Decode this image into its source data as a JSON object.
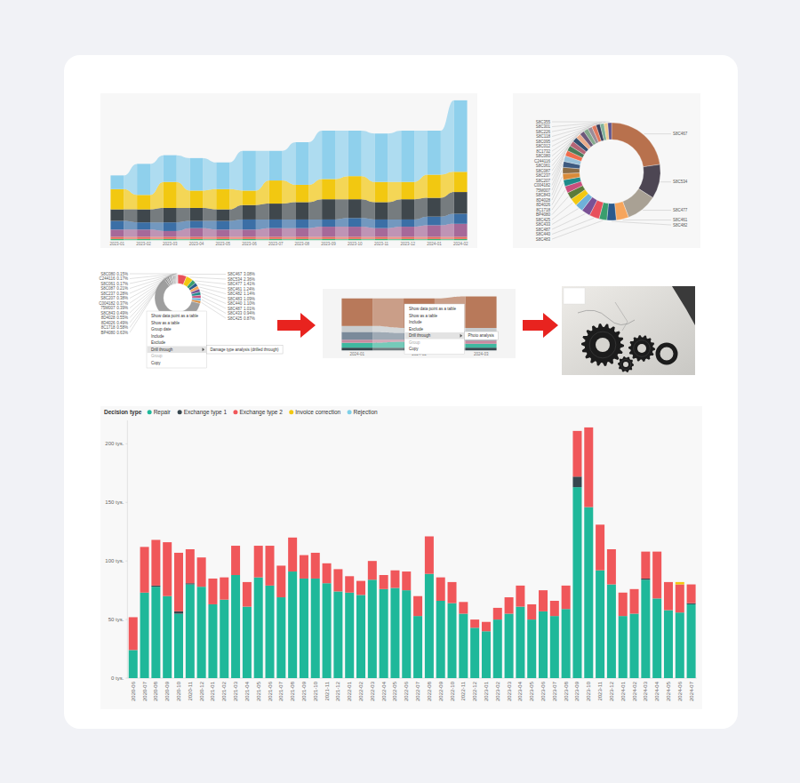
{
  "chart_data": [
    {
      "type": "ribbon",
      "tick_labels": "x",
      "ylim": [
        0,
        100
      ],
      "categories": [
        "2023-01",
        "2023-02",
        "2023-03",
        "2023-04",
        "2023-05",
        "2023-06",
        "2023-07",
        "2023-08",
        "2023-09",
        "2023-10",
        "2023-11",
        "2023-12",
        "2024-01",
        "2024-02"
      ],
      "series": [
        {
          "color": "#3bb273",
          "values": [
            1,
            1,
            1,
            1,
            1,
            1,
            1,
            1,
            1,
            1,
            1,
            1,
            1,
            1
          ]
        },
        {
          "color": "#e8705f",
          "values": [
            1.5,
            1.5,
            1.5,
            1.5,
            1.5,
            1.5,
            1.5,
            1.5,
            1.5,
            1.5,
            1.5,
            1.5,
            1.5,
            1.5
          ]
        },
        {
          "color": "#a66999",
          "values": [
            5,
            5,
            4,
            6,
            5,
            5,
            6,
            6,
            7,
            7,
            6,
            7,
            8,
            9
          ]
        },
        {
          "color": "#3b6fa6",
          "values": [
            6,
            5,
            6,
            5,
            6,
            7,
            6,
            6,
            5,
            6,
            6,
            5,
            6,
            7
          ]
        },
        {
          "color": "#3f474c",
          "values": [
            8,
            9,
            10,
            9,
            8,
            10,
            11,
            12,
            14,
            13,
            12,
            14,
            13,
            15
          ]
        },
        {
          "color": "#f2c811",
          "values": [
            14,
            10,
            18,
            12,
            14,
            10,
            16,
            12,
            14,
            16,
            14,
            12,
            16,
            14
          ]
        },
        {
          "color": "#8fd0ec",
          "values": [
            9.5,
            21.5,
            18.5,
            22.5,
            18.5,
            27.5,
            20.5,
            29.5,
            33.5,
            31.5,
            33.5,
            35.5,
            30.5,
            49.5
          ]
        }
      ]
    },
    {
      "type": "donut",
      "categories": [
        "S8C467",
        "S8C534",
        "S8C477",
        "S8C461",
        "S8C482",
        "S8C483",
        "S8C440",
        "S8C487",
        "S8C433",
        "S8C425",
        "BP4080",
        "8C1718",
        "8D4026",
        "8D4028",
        "S8C843",
        "75M007",
        "C004182",
        "S8C207",
        "S8C237",
        "S8C087",
        "S8C061",
        "C244116",
        "S8C080",
        "8C1732",
        "S8C012",
        "S8C095",
        "S8C118",
        "S8C226",
        "S8C301",
        "S8C355"
      ],
      "values": [
        22,
        11,
        10,
        4,
        3,
        2.5,
        3.2,
        2.8,
        2.6,
        2.4,
        2.3,
        2.2,
        2.1,
        2.0,
        2.0,
        1.9,
        1.8,
        1.8,
        1.7,
        1.7,
        1.6,
        1.6,
        1.5,
        1.5,
        1.4,
        1.4,
        1.3,
        1.3,
        1.2,
        1.2
      ],
      "colors": [
        "#b8714d",
        "#4d4653",
        "#a9a194",
        "#f6a55c",
        "#2b5a8c",
        "#3a9e6e",
        "#e8505b",
        "#7a5195",
        "#6fb1d9",
        "#f2c811",
        "#5b7a3a",
        "#c94f7c",
        "#1f8a8a",
        "#d98b3a",
        "#8c6d46",
        "#3d5a80",
        "#98c1d9",
        "#ee6c4d",
        "#4a7c59",
        "#b56576",
        "#355070",
        "#eaac8b",
        "#6d597a",
        "#84a98c",
        "#9a8c98",
        "#e07a5f",
        "#3d405b",
        "#81b29a",
        "#f2cc8f",
        "#5e548e"
      ]
    },
    {
      "type": "donut",
      "data_labels": true,
      "categories": [
        "S8C467",
        "S8C534",
        "S8C477",
        "S8C461",
        "S8C482",
        "S8C483",
        "S8C440",
        "S8C487",
        "S8C433",
        "S8C425",
        null,
        "BP4080",
        "8C1718",
        "8D4026",
        "8D4028",
        "S8C843",
        "75M007",
        "C004182",
        "S8C207",
        "S8C237",
        "S8C087",
        "S8C061",
        "C244116",
        "S8C080"
      ],
      "values": [
        3.08,
        2.36,
        1.41,
        1.24,
        1.14,
        1.09,
        1.1,
        1.01,
        0.94,
        0.87,
        30,
        0.63,
        0.58,
        0.49,
        0.55,
        0.49,
        0.39,
        0.37,
        0.38,
        0.28,
        0.21,
        0.17,
        0.17,
        0.15
      ],
      "value_labels": [
        "3.08%",
        "2.36%",
        "1.41%",
        "1.24%",
        "1.14%",
        "1.09%",
        "1.10%",
        "1.01%",
        "0.94%",
        "0.87%",
        null,
        "0.63%",
        "0.58%",
        "0.49%",
        "0.55%",
        "0.49%",
        "0.39%",
        "0.37%",
        "0.38%",
        "0.28%",
        "0.21%",
        "0.17%",
        "0.17%",
        "0.15%"
      ],
      "colors": [
        "#e8505b",
        "#f2c811",
        "#3a9e6e",
        "#2b5a8c",
        "#f6a55c",
        "#7a5195",
        "#1f8a8a",
        "#c94f7c",
        "#6fb1d9",
        "#d98b3a",
        "#9e9e9e",
        "#8a8a8a",
        "#a6a6a6",
        "#7d7d7d",
        "#b3b3b3",
        "#939393",
        "#c0c0c0",
        "#868686",
        "#aaaaaa",
        "#9a9a9a",
        "#b8b8b8",
        "#8f8f8f",
        "#a0a0a0",
        "#bdbdbd"
      ]
    },
    {
      "type": "ribbon",
      "tick_labels": "x",
      "ylim": [
        0,
        60
      ],
      "categories": [
        "2024-01",
        "2024-02",
        "2024-03"
      ],
      "series": [
        {
          "color": "#37474f",
          "values": [
            3,
            3,
            3
          ]
        },
        {
          "color": "#3fb8a0",
          "values": [
            5,
            6,
            4
          ]
        },
        {
          "color": "#c98aa0",
          "values": [
            3,
            2,
            3
          ]
        },
        {
          "color": "#7a8a9a",
          "values": [
            8,
            7,
            6
          ]
        },
        {
          "color": "#c8ccce",
          "values": [
            6,
            5,
            7
          ]
        },
        {
          "color": "#b8795a",
          "values": [
            28,
            30,
            32
          ]
        }
      ]
    },
    {
      "type": "bar",
      "stacked": true,
      "grid": false,
      "legend": "top-left",
      "legend_title": "Decision type",
      "ylim": [
        0,
        220
      ],
      "yticks": [
        {
          "value": 0,
          "label": "0 tys."
        },
        {
          "value": 50,
          "label": "50 tys."
        },
        {
          "value": 100,
          "label": "100 tys."
        },
        {
          "value": 150,
          "label": "150 tys."
        },
        {
          "value": 200,
          "label": "200 tys."
        }
      ],
      "categories": [
        "2020-06",
        "2020-07",
        "2020-08",
        "2020-09",
        "2020-10",
        "2020-11",
        "2020-12",
        "2021-01",
        "2021-02",
        "2021-03",
        "2021-04",
        "2021-05",
        "2021-06",
        "2021-07",
        "2021-08",
        "2021-09",
        "2021-10",
        "2021-11",
        "2021-12",
        "2022-01",
        "2022-02",
        "2022-03",
        "2022-04",
        "2022-05",
        "2022-06",
        "2022-07",
        "2022-08",
        "2022-09",
        "2022-10",
        "2022-11",
        "2022-12",
        "2023-01",
        "2023-02",
        "2023-03",
        "2023-04",
        "2023-05",
        "2023-06",
        "2023-07",
        "2023-08",
        "2023-09",
        "2023-10",
        "2023-11",
        "2023-12",
        "2024-01",
        "2024-02",
        "2024-03",
        "2024-04",
        "2024-05",
        "2024-06",
        "2024-07"
      ],
      "series": [
        {
          "name": "Repair",
          "color": "#1fb89a",
          "values": [
            24,
            73,
            78,
            70,
            55,
            80,
            78,
            63,
            67,
            88,
            61,
            86,
            79,
            69,
            91,
            85,
            85,
            81,
            74,
            73,
            71,
            84,
            76,
            77,
            75,
            53,
            89,
            66,
            64,
            55,
            43,
            40,
            50,
            55,
            61,
            50,
            57,
            53,
            59,
            163,
            146,
            92,
            80,
            53,
            55,
            84,
            68,
            58,
            56,
            63
          ]
        },
        {
          "name": "Exchange type 1",
          "color": "#37474f",
          "values": [
            0,
            0,
            1,
            0,
            2,
            1,
            0,
            0,
            0,
            0,
            0,
            0,
            0,
            0,
            0,
            0,
            0,
            0,
            0,
            0,
            0,
            0,
            0,
            0,
            0,
            0,
            0,
            0,
            0,
            0,
            0,
            0,
            0,
            0,
            0,
            0,
            0,
            0,
            0,
            9,
            0,
            0,
            0,
            0,
            0,
            1,
            0,
            0,
            0,
            1
          ]
        },
        {
          "name": "Exchange type 2",
          "color": "#f0575a",
          "values": [
            28,
            39,
            39,
            46,
            50,
            29,
            25,
            22,
            19,
            25,
            21,
            27,
            34,
            27,
            29,
            20,
            22,
            17,
            19,
            14,
            12,
            16,
            12,
            15,
            16,
            17,
            32,
            20,
            18,
            10,
            7,
            8,
            10,
            14,
            18,
            13,
            18,
            13,
            20,
            39,
            68,
            39,
            30,
            20,
            21,
            23,
            40,
            24,
            24,
            16
          ]
        },
        {
          "name": "Invoice correction",
          "color": "#f2c811",
          "values": [
            0,
            0,
            0,
            0,
            0,
            0,
            0,
            0,
            0,
            0,
            0,
            0,
            0,
            0,
            0,
            0,
            0,
            0,
            0,
            0,
            0,
            0,
            0,
            0,
            0,
            0,
            0,
            0,
            0,
            0,
            0,
            0,
            0,
            0,
            0,
            0,
            0,
            0,
            0,
            0,
            0,
            0,
            0,
            0,
            0,
            0,
            0,
            0,
            2,
            0
          ]
        },
        {
          "name": "Rejection",
          "color": "#7fd0e8",
          "values": [
            0,
            0,
            0,
            0,
            0,
            0,
            0,
            0,
            0,
            0,
            0,
            0,
            0,
            0,
            0,
            0,
            0,
            0,
            0,
            0,
            0,
            0,
            0,
            0,
            0,
            0,
            0,
            0,
            0,
            0,
            0,
            0,
            0,
            0,
            0,
            0,
            0,
            0,
            0,
            0,
            0,
            0,
            0,
            0,
            0,
            0,
            0,
            0,
            0,
            0
          ]
        }
      ]
    }
  ],
  "drill_through": {
    "first_menu": {
      "items": [
        {
          "text": "Show data point as a table"
        },
        {
          "text": "Show as a table"
        },
        {
          "text": "Group date"
        },
        {
          "text": "Include"
        },
        {
          "text": "Exclude"
        },
        {
          "text": "Drill through",
          "submenu": "Damage type analysis (drilled through)"
        },
        {
          "text": "Group",
          "disabled": true
        },
        {
          "text": "Copy"
        }
      ]
    },
    "second_menu": {
      "items": [
        {
          "text": "Show data point as a table"
        },
        {
          "text": "Show as a table"
        },
        {
          "text": "Include"
        },
        {
          "text": "Exclude"
        },
        {
          "text": "Drill through",
          "submenu": "Photo analysis"
        },
        {
          "text": "Group",
          "disabled": true
        },
        {
          "text": "Copy"
        }
      ]
    }
  }
}
